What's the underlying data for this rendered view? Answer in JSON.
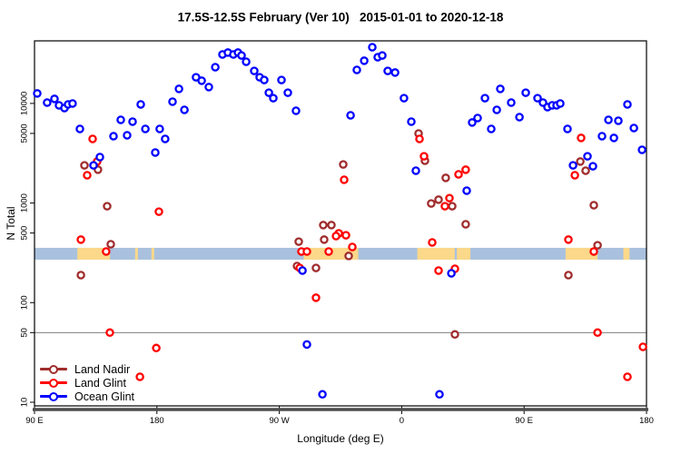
{
  "title": "17.5S-12.5S February (Ver 10)   2015-01-01 to 2020-12-18",
  "chart_data": {
    "type": "scatter",
    "title": "17.5S-12.5S February (Ver 10)   2015-01-01 to 2020-12-18",
    "xlabel": "Longitude (deg E)",
    "ylabel": "N Total",
    "x_axis": {
      "tick_lons": [
        90,
        180,
        270,
        360,
        450,
        540
      ],
      "labels": [
        "90 E",
        "180",
        "90 W",
        "0",
        "90 E",
        "180"
      ],
      "domain_deg": [
        90,
        540
      ]
    },
    "y_axis": {
      "scale": "log",
      "ticks": [
        10,
        50,
        100,
        500,
        1000,
        5000,
        10000
      ],
      "tick_labels": [
        "10",
        "50",
        "100",
        "500",
        "1000",
        "5000",
        "10000"
      ],
      "ylim": [
        9,
        42000
      ]
    },
    "reference_line_y": 50,
    "grid": "off",
    "legend_position": "bottom-left",
    "surface_band": {
      "description": "land-ocean strip along latitude band",
      "y_range": [
        270,
        355
      ],
      "ocean_color": "#a9c1de",
      "land_color": "#fbd88a",
      "land_segments_deg": [
        [
          121.5,
          145.5
        ],
        [
          164,
          166
        ],
        [
          176,
          178
        ],
        [
          288,
          328
        ],
        [
          371.5,
          399
        ],
        [
          400.5,
          410.5
        ],
        [
          480.5,
          504
        ],
        [
          523,
          527.5
        ]
      ]
    },
    "series": [
      {
        "name": "Land Nadir",
        "color": "#a02c2c",
        "points": [
          [
            126.7,
            2390
          ],
          [
            136.7,
            2160
          ],
          [
            143.4,
            930
          ],
          [
            146.1,
            386
          ],
          [
            124.1,
            189
          ],
          [
            302.3,
            600
          ],
          [
            308.3,
            600
          ],
          [
            317.0,
            2440
          ],
          [
            284.3,
            410
          ],
          [
            303.0,
            429
          ],
          [
            321.0,
            294
          ],
          [
            283.0,
            233
          ],
          [
            297.0,
            223
          ],
          [
            372.4,
            4990
          ],
          [
            377.1,
            2660
          ],
          [
            392.4,
            1790
          ],
          [
            381.7,
            990
          ],
          [
            387.1,
            1080
          ],
          [
            397.1,
            930
          ],
          [
            407.1,
            612
          ],
          [
            399.1,
            48
          ],
          [
            491.3,
            2610
          ],
          [
            495.3,
            2110
          ],
          [
            501.3,
            950
          ],
          [
            504.0,
            377
          ],
          [
            482.6,
            189
          ]
        ]
      },
      {
        "name": "Land Glint",
        "color": "#ff0000",
        "points": [
          [
            132.7,
            4400
          ],
          [
            128.7,
            1900
          ],
          [
            136.1,
            2610
          ],
          [
            181.5,
            820
          ],
          [
            124.1,
            429
          ],
          [
            142.7,
            326
          ],
          [
            145.4,
            50
          ],
          [
            179.5,
            35
          ],
          [
            167.5,
            18
          ],
          [
            317.7,
            1710
          ],
          [
            313.7,
            496
          ],
          [
            319.0,
            475
          ],
          [
            311.7,
            466
          ],
          [
            286.3,
            326
          ],
          [
            290.3,
            326
          ],
          [
            306.3,
            326
          ],
          [
            285.0,
            223
          ],
          [
            297.0,
            112
          ],
          [
            373.1,
            4400
          ],
          [
            376.4,
            2950
          ],
          [
            407.1,
            2160
          ],
          [
            401.8,
            1940
          ],
          [
            395.1,
            1120
          ],
          [
            391.8,
            930
          ],
          [
            382.4,
            402
          ],
          [
            323.7,
            362
          ],
          [
            387.1,
            210
          ],
          [
            399.1,
            219
          ],
          [
            491.9,
            4500
          ],
          [
            487.3,
            1900
          ],
          [
            482.6,
            429
          ],
          [
            501.3,
            326
          ],
          [
            504.0,
            50
          ],
          [
            537.4,
            36
          ],
          [
            526.0,
            18
          ]
        ]
      },
      {
        "name": "Ocean Glint",
        "color": "#0000ff",
        "points": [
          [
            92.0,
            12600
          ],
          [
            99.3,
            10200
          ],
          [
            104.7,
            11100
          ],
          [
            108.0,
            9570
          ],
          [
            112.0,
            8990
          ],
          [
            114.7,
            9770
          ],
          [
            118.0,
            9980
          ],
          [
            123.4,
            5550
          ],
          [
            133.4,
            2390
          ],
          [
            138.1,
            2890
          ],
          [
            148.1,
            4690
          ],
          [
            153.4,
            6840
          ],
          [
            158.1,
            4790
          ],
          [
            162.1,
            6560
          ],
          [
            168.1,
            9770
          ],
          [
            171.5,
            5550
          ],
          [
            178.8,
            3210
          ],
          [
            182.1,
            5550
          ],
          [
            186.1,
            4400
          ],
          [
            191.5,
            10400
          ],
          [
            196.2,
            14000
          ],
          [
            200.2,
            8610
          ],
          [
            208.8,
            18300
          ],
          [
            212.9,
            16900
          ],
          [
            218.2,
            14600
          ],
          [
            222.9,
            23100
          ],
          [
            228.2,
            31000
          ],
          [
            232.2,
            32400
          ],
          [
            236.2,
            31000
          ],
          [
            239.6,
            32400
          ],
          [
            242.2,
            30300
          ],
          [
            245.6,
            26200
          ],
          [
            251.6,
            21200
          ],
          [
            255.6,
            18300
          ],
          [
            258.9,
            17200
          ],
          [
            262.3,
            12800
          ],
          [
            265.6,
            11300
          ],
          [
            271.6,
            17200
          ],
          [
            276.3,
            12800
          ],
          [
            282.3,
            8440
          ],
          [
            322.4,
            7600
          ],
          [
            327.0,
            21700
          ],
          [
            332.4,
            26800
          ],
          [
            338.4,
            36700
          ],
          [
            342.4,
            29100
          ],
          [
            345.7,
            30300
          ],
          [
            349.7,
            21200
          ],
          [
            355.1,
            20400
          ],
          [
            361.7,
            11300
          ],
          [
            367.1,
            6560
          ],
          [
            370.4,
            2110
          ],
          [
            407.8,
            1330
          ],
          [
            411.8,
            6430
          ],
          [
            415.8,
            7130
          ],
          [
            421.2,
            11300
          ],
          [
            425.8,
            5550
          ],
          [
            429.9,
            8610
          ],
          [
            432.5,
            14000
          ],
          [
            440.5,
            10200
          ],
          [
            446.6,
            7280
          ],
          [
            451.2,
            12800
          ],
          [
            459.9,
            11300
          ],
          [
            463.9,
            10200
          ],
          [
            467.2,
            9180
          ],
          [
            470.6,
            9570
          ],
          [
            473.9,
            9570
          ],
          [
            476.6,
            9980
          ],
          [
            481.9,
            5550
          ],
          [
            486.0,
            2390
          ],
          [
            496.6,
            2950
          ],
          [
            500.6,
            2340
          ],
          [
            507.3,
            4690
          ],
          [
            512.0,
            6840
          ],
          [
            516.0,
            4500
          ],
          [
            519.3,
            6700
          ],
          [
            526.0,
            9770
          ],
          [
            530.7,
            5660
          ],
          [
            536.7,
            3420
          ],
          [
            287.0,
            210
          ],
          [
            396.5,
            197
          ],
          [
            290.3,
            38
          ],
          [
            301.7,
            12
          ],
          [
            387.8,
            12
          ]
        ]
      }
    ]
  }
}
